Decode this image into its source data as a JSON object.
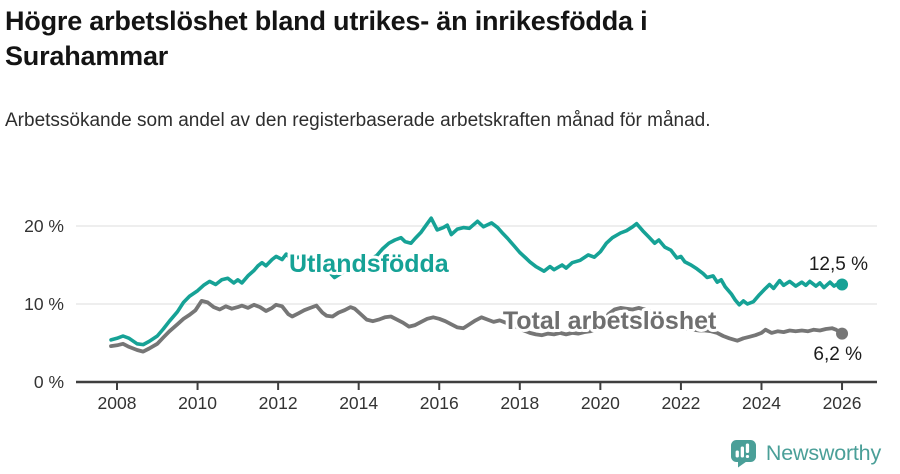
{
  "header": {
    "title": "Högre arbetslöshet bland utrikes- än inrikesfödda i Surahammar",
    "subtitle": "Arbetssökande som andel av den registerbaserade arbetskraften månad för månad."
  },
  "footer": {
    "brand": "Newsworthy"
  },
  "colors": {
    "accent_teal": "#16a296",
    "line_gray": "#767676",
    "grid": "#e3e3e3",
    "axis": "#3f3f3f",
    "brand": "#4a9f98"
  },
  "chart_data": {
    "type": "line",
    "title": "Högre arbetslöshet bland utrikes- än inrikesfödda i Surahammar",
    "subtitle": "Arbetssökande som andel av den registerbaserade arbetskraften månad för månad.",
    "unit": "%",
    "grid": "horizontal-only",
    "legend_position": "inline-labels",
    "x_axis": {
      "min": 2007.83,
      "max": 2026.4,
      "ticks": [
        2008,
        2010,
        2012,
        2014,
        2016,
        2018,
        2020,
        2022,
        2024,
        2026
      ]
    },
    "y_axis": {
      "min": 0,
      "max": 23,
      "ticks": [
        {
          "value": 0,
          "label": "0 %"
        },
        {
          "value": 10,
          "label": "10 %"
        },
        {
          "value": 20,
          "label": "20 %"
        }
      ]
    },
    "series": [
      {
        "name": "Utlandsfödda",
        "color": "#16a296",
        "width": 3.6,
        "end_label": "12,5 %",
        "end_value": 12.5,
        "inline_label": {
          "text": "Utlandsfödda",
          "x": 2012.27,
          "y": 14.1
        },
        "points": [
          [
            2007.85,
            5.4
          ],
          [
            2008.0,
            5.6
          ],
          [
            2008.15,
            5.9
          ],
          [
            2008.3,
            5.6
          ],
          [
            2008.5,
            4.9
          ],
          [
            2008.65,
            4.8
          ],
          [
            2008.8,
            5.2
          ],
          [
            2009.0,
            5.9
          ],
          [
            2009.15,
            6.8
          ],
          [
            2009.3,
            7.8
          ],
          [
            2009.5,
            9.0
          ],
          [
            2009.65,
            10.2
          ],
          [
            2009.8,
            11.0
          ],
          [
            2010.0,
            11.7
          ],
          [
            2010.15,
            12.4
          ],
          [
            2010.3,
            12.9
          ],
          [
            2010.45,
            12.5
          ],
          [
            2010.6,
            13.1
          ],
          [
            2010.75,
            13.3
          ],
          [
            2010.9,
            12.7
          ],
          [
            2011.0,
            13.1
          ],
          [
            2011.1,
            12.7
          ],
          [
            2011.25,
            13.6
          ],
          [
            2011.4,
            14.3
          ],
          [
            2011.5,
            14.9
          ],
          [
            2011.6,
            15.3
          ],
          [
            2011.7,
            14.9
          ],
          [
            2011.85,
            15.7
          ],
          [
            2011.95,
            16.1
          ],
          [
            2012.1,
            15.7
          ],
          [
            2012.2,
            16.4
          ],
          [
            2012.35,
            15.7
          ],
          [
            2012.5,
            16.0
          ],
          [
            2012.65,
            15.8
          ],
          [
            2012.8,
            16.2
          ],
          [
            2012.95,
            15.7
          ],
          [
            2013.1,
            15.0
          ],
          [
            2013.25,
            14.2
          ],
          [
            2013.4,
            13.4
          ],
          [
            2013.55,
            13.9
          ],
          [
            2013.7,
            14.3
          ],
          [
            2013.85,
            14.8
          ],
          [
            2014.0,
            15.1
          ],
          [
            2014.15,
            15.4
          ],
          [
            2014.3,
            15.8
          ],
          [
            2014.45,
            16.2
          ],
          [
            2014.6,
            17.1
          ],
          [
            2014.75,
            17.8
          ],
          [
            2014.9,
            18.2
          ],
          [
            2015.05,
            18.5
          ],
          [
            2015.15,
            18.0
          ],
          [
            2015.3,
            17.8
          ],
          [
            2015.4,
            18.4
          ],
          [
            2015.55,
            19.2
          ],
          [
            2015.7,
            20.3
          ],
          [
            2015.8,
            21.0
          ],
          [
            2015.95,
            19.5
          ],
          [
            2016.1,
            19.8
          ],
          [
            2016.2,
            20.1
          ],
          [
            2016.3,
            18.9
          ],
          [
            2016.45,
            19.6
          ],
          [
            2016.6,
            19.8
          ],
          [
            2016.75,
            19.7
          ],
          [
            2016.95,
            20.6
          ],
          [
            2017.1,
            19.9
          ],
          [
            2017.3,
            20.4
          ],
          [
            2017.45,
            19.8
          ],
          [
            2017.55,
            19.2
          ],
          [
            2017.7,
            18.4
          ],
          [
            2017.85,
            17.5
          ],
          [
            2018.0,
            16.6
          ],
          [
            2018.15,
            15.9
          ],
          [
            2018.25,
            15.4
          ],
          [
            2018.4,
            14.8
          ],
          [
            2018.6,
            14.2
          ],
          [
            2018.75,
            14.8
          ],
          [
            2018.85,
            14.4
          ],
          [
            2019.05,
            15.0
          ],
          [
            2019.15,
            14.6
          ],
          [
            2019.3,
            15.3
          ],
          [
            2019.5,
            15.6
          ],
          [
            2019.7,
            16.3
          ],
          [
            2019.85,
            16.0
          ],
          [
            2020.0,
            16.7
          ],
          [
            2020.15,
            17.8
          ],
          [
            2020.3,
            18.5
          ],
          [
            2020.5,
            19.1
          ],
          [
            2020.65,
            19.4
          ],
          [
            2020.8,
            19.9
          ],
          [
            2020.9,
            20.3
          ],
          [
            2021.05,
            19.4
          ],
          [
            2021.2,
            18.6
          ],
          [
            2021.35,
            17.8
          ],
          [
            2021.45,
            18.2
          ],
          [
            2021.6,
            17.3
          ],
          [
            2021.75,
            16.9
          ],
          [
            2021.9,
            15.9
          ],
          [
            2022.0,
            16.1
          ],
          [
            2022.1,
            15.4
          ],
          [
            2022.25,
            15.0
          ],
          [
            2022.4,
            14.5
          ],
          [
            2022.55,
            13.9
          ],
          [
            2022.65,
            13.4
          ],
          [
            2022.8,
            13.6
          ],
          [
            2022.9,
            12.8
          ],
          [
            2023.0,
            13.1
          ],
          [
            2023.1,
            12.2
          ],
          [
            2023.25,
            11.3
          ],
          [
            2023.35,
            10.5
          ],
          [
            2023.45,
            9.9
          ],
          [
            2023.55,
            10.4
          ],
          [
            2023.65,
            10.0
          ],
          [
            2023.8,
            10.3
          ],
          [
            2023.95,
            11.2
          ],
          [
            2024.1,
            12.0
          ],
          [
            2024.2,
            12.5
          ],
          [
            2024.3,
            12.0
          ],
          [
            2024.45,
            13.0
          ],
          [
            2024.55,
            12.4
          ],
          [
            2024.7,
            12.9
          ],
          [
            2024.85,
            12.3
          ],
          [
            2025.0,
            12.8
          ],
          [
            2025.1,
            12.4
          ],
          [
            2025.2,
            12.9
          ],
          [
            2025.35,
            12.3
          ],
          [
            2025.45,
            12.7
          ],
          [
            2025.55,
            12.1
          ],
          [
            2025.7,
            12.8
          ],
          [
            2025.8,
            12.3
          ],
          [
            2025.9,
            12.6
          ],
          [
            2026.0,
            12.5
          ]
        ]
      },
      {
        "name": "Total arbetslöshet",
        "color": "#767676",
        "width": 3.8,
        "end_label": "6,2 %",
        "end_value": 6.2,
        "inline_label": {
          "text": "Total arbetslöshet",
          "x": 2017.58,
          "y": 6.8
        },
        "points": [
          [
            2007.85,
            4.6
          ],
          [
            2008.0,
            4.7
          ],
          [
            2008.15,
            4.9
          ],
          [
            2008.3,
            4.5
          ],
          [
            2008.5,
            4.1
          ],
          [
            2008.65,
            3.9
          ],
          [
            2008.8,
            4.3
          ],
          [
            2009.0,
            4.9
          ],
          [
            2009.15,
            5.7
          ],
          [
            2009.3,
            6.5
          ],
          [
            2009.5,
            7.4
          ],
          [
            2009.65,
            8.1
          ],
          [
            2009.8,
            8.6
          ],
          [
            2009.95,
            9.2
          ],
          [
            2010.1,
            10.4
          ],
          [
            2010.25,
            10.2
          ],
          [
            2010.4,
            9.6
          ],
          [
            2010.55,
            9.3
          ],
          [
            2010.7,
            9.7
          ],
          [
            2010.85,
            9.4
          ],
          [
            2011.0,
            9.6
          ],
          [
            2011.1,
            9.8
          ],
          [
            2011.25,
            9.5
          ],
          [
            2011.4,
            9.9
          ],
          [
            2011.55,
            9.6
          ],
          [
            2011.7,
            9.1
          ],
          [
            2011.85,
            9.5
          ],
          [
            2011.95,
            9.9
          ],
          [
            2012.1,
            9.7
          ],
          [
            2012.25,
            8.7
          ],
          [
            2012.35,
            8.4
          ],
          [
            2012.5,
            8.8
          ],
          [
            2012.65,
            9.2
          ],
          [
            2012.8,
            9.5
          ],
          [
            2012.95,
            9.8
          ],
          [
            2013.1,
            8.9
          ],
          [
            2013.2,
            8.5
          ],
          [
            2013.35,
            8.4
          ],
          [
            2013.5,
            8.9
          ],
          [
            2013.65,
            9.2
          ],
          [
            2013.8,
            9.6
          ],
          [
            2013.9,
            9.4
          ],
          [
            2014.05,
            8.7
          ],
          [
            2014.2,
            8.0
          ],
          [
            2014.35,
            7.8
          ],
          [
            2014.5,
            8.0
          ],
          [
            2014.65,
            8.3
          ],
          [
            2014.8,
            8.4
          ],
          [
            2014.95,
            8.0
          ],
          [
            2015.1,
            7.6
          ],
          [
            2015.25,
            7.1
          ],
          [
            2015.4,
            7.3
          ],
          [
            2015.55,
            7.7
          ],
          [
            2015.7,
            8.1
          ],
          [
            2015.85,
            8.3
          ],
          [
            2016.0,
            8.1
          ],
          [
            2016.15,
            7.8
          ],
          [
            2016.3,
            7.4
          ],
          [
            2016.45,
            7.0
          ],
          [
            2016.6,
            6.9
          ],
          [
            2016.75,
            7.4
          ],
          [
            2016.9,
            7.9
          ],
          [
            2017.05,
            8.3
          ],
          [
            2017.2,
            8.0
          ],
          [
            2017.35,
            7.7
          ],
          [
            2017.5,
            7.9
          ],
          [
            2017.65,
            7.6
          ],
          [
            2017.8,
            7.3
          ],
          [
            2017.95,
            7.0
          ],
          [
            2018.1,
            6.6
          ],
          [
            2018.25,
            6.3
          ],
          [
            2018.4,
            6.1
          ],
          [
            2018.55,
            6.0
          ],
          [
            2018.7,
            6.2
          ],
          [
            2018.85,
            6.1
          ],
          [
            2019.0,
            6.3
          ],
          [
            2019.15,
            6.1
          ],
          [
            2019.3,
            6.3
          ],
          [
            2019.45,
            6.2
          ],
          [
            2019.6,
            6.4
          ],
          [
            2019.75,
            6.5
          ],
          [
            2019.9,
            6.8
          ],
          [
            2020.05,
            7.3
          ],
          [
            2020.2,
            8.7
          ],
          [
            2020.35,
            9.3
          ],
          [
            2020.5,
            9.5
          ],
          [
            2020.65,
            9.4
          ],
          [
            2020.8,
            9.3
          ],
          [
            2020.95,
            9.5
          ],
          [
            2021.1,
            9.3
          ],
          [
            2021.25,
            9.0
          ],
          [
            2021.4,
            8.7
          ],
          [
            2021.55,
            8.2
          ],
          [
            2021.7,
            7.8
          ],
          [
            2021.85,
            7.4
          ],
          [
            2022.0,
            7.0
          ],
          [
            2022.15,
            6.8
          ],
          [
            2022.3,
            6.7
          ],
          [
            2022.45,
            6.6
          ],
          [
            2022.6,
            6.6
          ],
          [
            2022.75,
            6.5
          ],
          [
            2022.9,
            6.3
          ],
          [
            2023.05,
            5.9
          ],
          [
            2023.2,
            5.6
          ],
          [
            2023.4,
            5.3
          ],
          [
            2023.55,
            5.6
          ],
          [
            2023.7,
            5.8
          ],
          [
            2023.85,
            6.0
          ],
          [
            2024.0,
            6.3
          ],
          [
            2024.1,
            6.7
          ],
          [
            2024.25,
            6.3
          ],
          [
            2024.4,
            6.5
          ],
          [
            2024.55,
            6.4
          ],
          [
            2024.7,
            6.6
          ],
          [
            2024.85,
            6.5
          ],
          [
            2025.0,
            6.6
          ],
          [
            2025.15,
            6.5
          ],
          [
            2025.3,
            6.7
          ],
          [
            2025.45,
            6.6
          ],
          [
            2025.6,
            6.8
          ],
          [
            2025.75,
            6.9
          ],
          [
            2025.85,
            6.7
          ],
          [
            2026.0,
            6.2
          ]
        ]
      }
    ]
  }
}
